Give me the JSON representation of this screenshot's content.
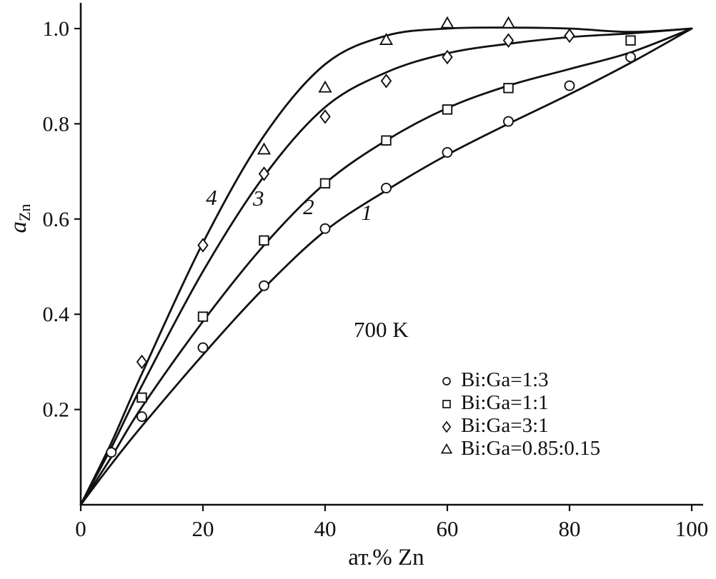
{
  "chart_data": {
    "type": "line",
    "title": "",
    "xlabel": "ат.% Zn",
    "ylabel": "aZn",
    "ylabel_main": "a",
    "ylabel_sub": "Zn",
    "annotation": "700 K",
    "xlim": [
      0,
      100
    ],
    "ylim": [
      0,
      1.05
    ],
    "grid": false,
    "legend_position": "lower right",
    "x_ticks": [
      0,
      20,
      40,
      60,
      80,
      100
    ],
    "x_tick_labels": [
      "0",
      "20",
      "40",
      "60",
      "80",
      "100"
    ],
    "y_ticks": [
      0.2,
      0.4,
      0.6,
      0.8,
      1.0
    ],
    "y_tick_labels": [
      "0.2",
      "0.4",
      "0.6",
      "0.8",
      "1.0"
    ],
    "series": [
      {
        "name": "Bi:Ga=1:3",
        "marker": "circle",
        "curve_label": "1",
        "points": [
          [
            5,
            0.11
          ],
          [
            10,
            0.185
          ],
          [
            20,
            0.33
          ],
          [
            30,
            0.46
          ],
          [
            40,
            0.58
          ],
          [
            50,
            0.665
          ],
          [
            60,
            0.74
          ],
          [
            70,
            0.805
          ],
          [
            80,
            0.88
          ],
          [
            90,
            0.94
          ]
        ],
        "curve": [
          [
            0,
            0
          ],
          [
            5,
            0.085
          ],
          [
            10,
            0.165
          ],
          [
            20,
            0.315
          ],
          [
            30,
            0.455
          ],
          [
            40,
            0.575
          ],
          [
            50,
            0.66
          ],
          [
            60,
            0.735
          ],
          [
            70,
            0.8
          ],
          [
            80,
            0.862
          ],
          [
            90,
            0.928
          ],
          [
            100,
            1.0
          ]
        ]
      },
      {
        "name": "Bi:Ga=1:1",
        "marker": "square",
        "curve_label": "2",
        "points": [
          [
            10,
            0.225
          ],
          [
            20,
            0.395
          ],
          [
            30,
            0.555
          ],
          [
            40,
            0.675
          ],
          [
            50,
            0.765
          ],
          [
            60,
            0.83
          ],
          [
            70,
            0.875
          ],
          [
            90,
            0.975
          ]
        ],
        "curve": [
          [
            0,
            0
          ],
          [
            5,
            0.1
          ],
          [
            10,
            0.205
          ],
          [
            20,
            0.385
          ],
          [
            30,
            0.545
          ],
          [
            40,
            0.675
          ],
          [
            50,
            0.765
          ],
          [
            60,
            0.833
          ],
          [
            70,
            0.88
          ],
          [
            80,
            0.915
          ],
          [
            90,
            0.95
          ],
          [
            100,
            1.0
          ]
        ]
      },
      {
        "name": "Bi:Ga=3:1",
        "marker": "diamond",
        "curve_label": "3",
        "points": [
          [
            10,
            0.3
          ],
          [
            20,
            0.545
          ],
          [
            30,
            0.695
          ],
          [
            40,
            0.815
          ],
          [
            50,
            0.89
          ],
          [
            60,
            0.94
          ],
          [
            70,
            0.975
          ],
          [
            80,
            0.985
          ]
        ],
        "curve": [
          [
            0,
            0
          ],
          [
            5,
            0.12
          ],
          [
            10,
            0.25
          ],
          [
            20,
            0.49
          ],
          [
            30,
            0.69
          ],
          [
            40,
            0.835
          ],
          [
            50,
            0.908
          ],
          [
            60,
            0.948
          ],
          [
            70,
            0.968
          ],
          [
            80,
            0.982
          ],
          [
            90,
            0.99
          ],
          [
            100,
            1.0
          ]
        ]
      },
      {
        "name": "Bi:Ga=0.85:0.15",
        "marker": "triangle",
        "curve_label": "4",
        "points": [
          [
            30,
            0.745
          ],
          [
            40,
            0.875
          ],
          [
            50,
            0.975
          ],
          [
            60,
            1.01
          ],
          [
            70,
            1.01
          ]
        ],
        "curve": [
          [
            0,
            0
          ],
          [
            5,
            0.13
          ],
          [
            10,
            0.275
          ],
          [
            20,
            0.55
          ],
          [
            30,
            0.775
          ],
          [
            40,
            0.925
          ],
          [
            50,
            0.985
          ],
          [
            60,
            1.0
          ],
          [
            70,
            1.002
          ],
          [
            80,
            1.0
          ],
          [
            90,
            0.993
          ],
          [
            100,
            1.0
          ]
        ]
      }
    ],
    "curve_labels": [
      {
        "text": "1",
        "x": 46.8,
        "y": 0.613
      },
      {
        "text": "2",
        "x": 37.3,
        "y": 0.625
      },
      {
        "text": "3",
        "x": 29.1,
        "y": 0.643
      },
      {
        "text": "4",
        "x": 21.4,
        "y": 0.645
      }
    ],
    "line_color": "#111111",
    "marker_color": "#111111",
    "background": "#ffffff"
  }
}
